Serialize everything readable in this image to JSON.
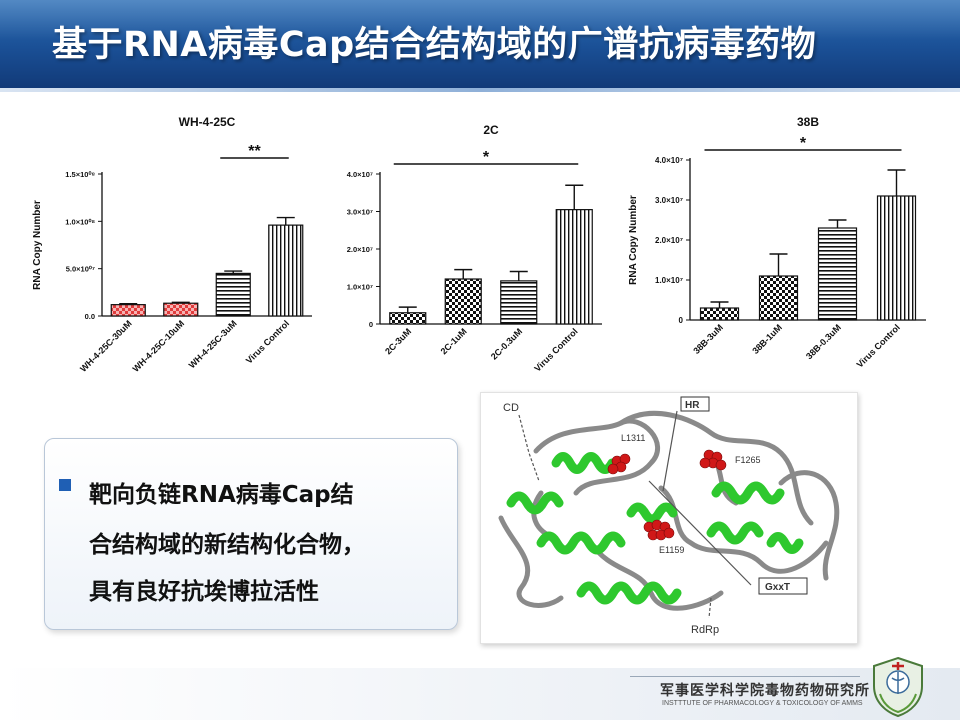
{
  "slide": {
    "title": "基于RNA病毒Cap结合结构域的广谱抗病毒药物",
    "bullet_lines": [
      "靶向负链RNA病毒Cap结",
      "合结构域的新结构化合物，",
      "具有良好抗埃博拉活性"
    ],
    "figure_labels": {
      "cd": "CD",
      "hr": "HR",
      "l1311": "L1311",
      "f1265": "F1265",
      "e1159": "E1159",
      "gxxt": "GxxT",
      "rdrp": "RdRp"
    },
    "institution_cn": "军事医学科学院毒物药物研究所",
    "institution_en": "INSTTTUTE OF PHARMACOLOGY & TOXICOLOGY OF AMMS"
  },
  "colors": {
    "header": "#1a4f95",
    "bullet": "#1f5fb4",
    "bar_red": "#e03c3c",
    "helix_green": "#2ec82e",
    "sphere_red": "#d01818"
  },
  "chart_data": [
    {
      "type": "bar",
      "title": "WH-4-25C",
      "ylabel": "RNA Copy Number",
      "categories": [
        "WH-4-25C-30uM",
        "WH-4-25C-10uM",
        "WH-4-25C-3uM",
        "Virus Control"
      ],
      "values": [
        12000000.0,
        13500000.0,
        45000000.0,
        96000000.0
      ],
      "errors": [
        1000000.0,
        1000000.0,
        2500000.0,
        8000000.0
      ],
      "patterns": [
        "red-check",
        "red-check",
        "hlines",
        "vlines"
      ],
      "ylim": [
        0,
        150000000.0
      ],
      "yticks": [
        "0.0",
        "5.0×10⁰⁷",
        "1.0×10⁰⁸",
        "1.5×10⁰⁸"
      ],
      "significance": {
        "label": "**",
        "from": 2,
        "to": 3
      }
    },
    {
      "type": "bar",
      "title": "2C",
      "ylabel": "",
      "categories": [
        "2C-3uM",
        "2C-1uM",
        "2C-0.3uM",
        "Virus Control"
      ],
      "values": [
        3000000.0,
        12000000.0,
        11500000.0,
        30500000.0
      ],
      "errors": [
        1500000.0,
        2500000.0,
        2500000.0,
        6500000.0
      ],
      "patterns": [
        "check",
        "check",
        "hlines",
        "vlines"
      ],
      "ylim": [
        0,
        40000000.0
      ],
      "yticks": [
        "0",
        "1.0×10⁷",
        "2.0×10⁷",
        "3.0×10⁷",
        "4.0×10⁷"
      ],
      "significance": {
        "label": "*",
        "from": 0,
        "to": 3
      }
    },
    {
      "type": "bar",
      "title": "38B",
      "ylabel": "RNA Copy Number",
      "categories": [
        "38B-3uM",
        "38B-1uM",
        "38B-0.3uM",
        "Virus Control"
      ],
      "values": [
        3000000.0,
        11000000.0,
        23000000.0,
        31000000.0
      ],
      "errors": [
        1500000.0,
        5500000.0,
        2000000.0,
        6500000.0
      ],
      "patterns": [
        "check",
        "check",
        "hlines",
        "vlines"
      ],
      "ylim": [
        0,
        40000000.0
      ],
      "yticks": [
        "0",
        "1.0×10⁷",
        "2.0×10⁷",
        "3.0×10⁷",
        "4.0×10⁷"
      ],
      "significance": {
        "label": "*",
        "from": 0,
        "to": 3
      }
    }
  ]
}
